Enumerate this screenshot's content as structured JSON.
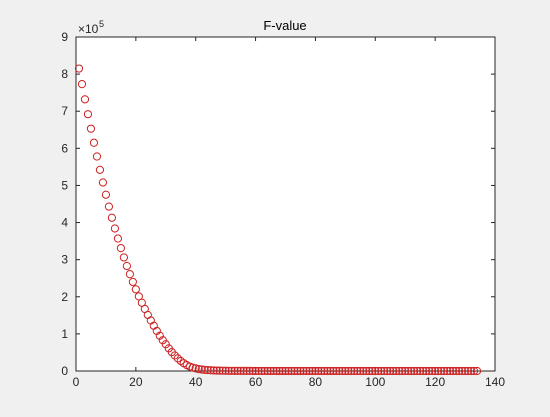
{
  "chart_data": {
    "type": "scatter",
    "title": "F-value",
    "xlabel": "",
    "ylabel": "",
    "xlim": [
      0,
      140
    ],
    "ylim": [
      0,
      900000
    ],
    "x_ticks": [
      0,
      20,
      40,
      60,
      80,
      100,
      120,
      140
    ],
    "y_ticks": [
      0,
      1,
      2,
      3,
      4,
      5,
      6,
      7,
      8,
      9
    ],
    "y_tick_labels": [
      "0",
      "1",
      "2",
      "3",
      "4",
      "5",
      "6",
      "7",
      "8",
      "9"
    ],
    "y_exponent_label": "×10",
    "y_exponent_power": "5",
    "grid": false,
    "marker": "circle-open",
    "marker_color": "#cc2222",
    "series": [
      {
        "x_start": 1,
        "x_end": 134,
        "values": [
          815000,
          773000,
          732000,
          692000,
          653000,
          615000,
          578000,
          542000,
          508000,
          475000,
          443000,
          413000,
          384000,
          357000,
          331000,
          306000,
          283000,
          261000,
          240000,
          220000,
          201000,
          184000,
          167000,
          151000,
          136000,
          122000,
          108000,
          95000,
          83000,
          72000,
          61000,
          51000,
          42000,
          34000,
          27000,
          21000,
          16000,
          12000,
          9000,
          7000,
          5000,
          4000,
          3000,
          2500,
          2000,
          1500,
          1200,
          1000,
          800,
          600
        ]
      }
    ]
  }
}
